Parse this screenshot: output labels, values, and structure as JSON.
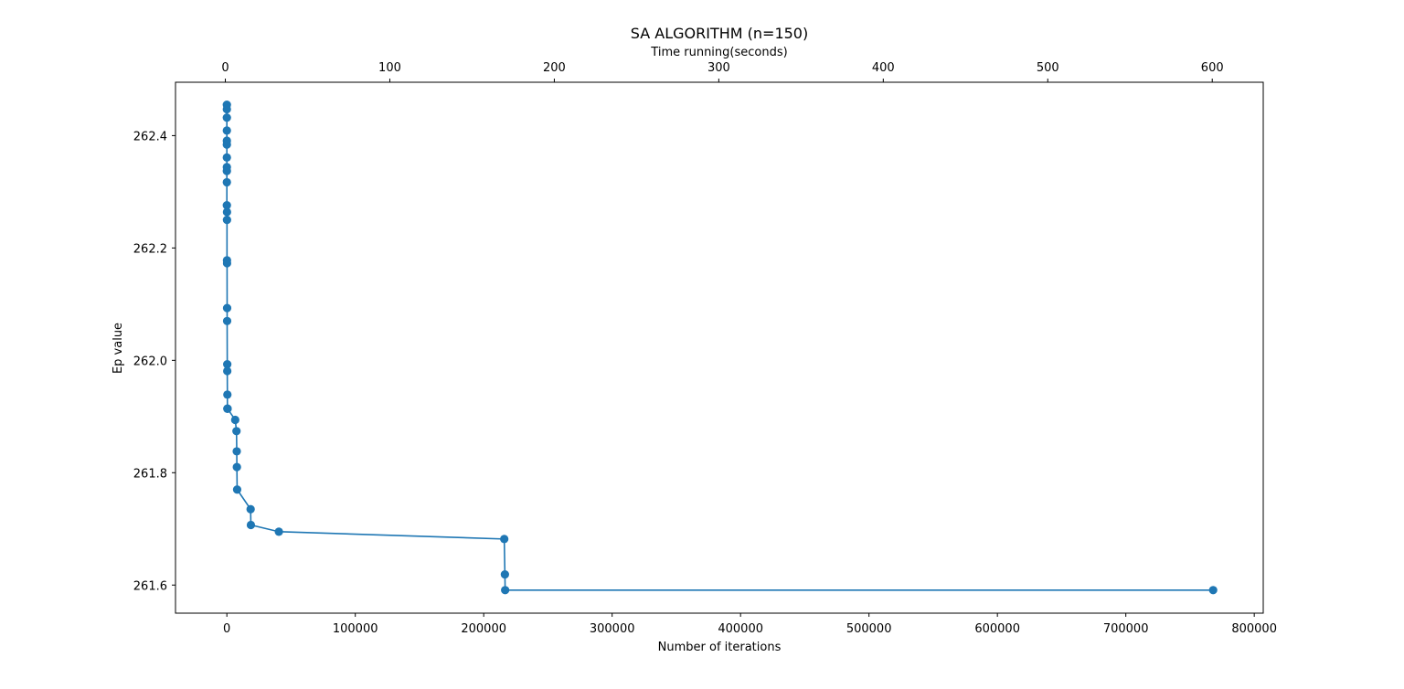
{
  "chart_data": {
    "type": "line",
    "title": "SA ALGORITHM (n=150)",
    "xlabel": "Number of iterations",
    "ylabel": "Ep value",
    "x2label": "Time running(seconds)",
    "xlim": [
      -40000,
      807000
    ],
    "ylim": [
      261.55,
      262.495
    ],
    "x2lim": [
      -30.3,
      631.0
    ],
    "x_ticks": [
      0,
      100000,
      200000,
      300000,
      400000,
      500000,
      600000,
      700000,
      800000
    ],
    "y_ticks": [
      261.6,
      261.8,
      262.0,
      262.2,
      262.4
    ],
    "x2_ticks": [
      0,
      100,
      200,
      300,
      400,
      500,
      600
    ],
    "grid": false,
    "series_color": "#1f77b4",
    "series": [
      {
        "x": [
          0,
          0,
          0,
          0,
          0,
          0,
          0,
          0,
          0,
          0,
          0,
          100,
          100,
          100,
          150,
          200,
          200,
          300,
          300,
          400,
          400,
          500,
          500,
          500,
          6500,
          7500,
          7700,
          7800,
          8000,
          18500,
          18700,
          40500,
          216000,
          216500,
          216700,
          768000
        ],
        "y": [
          262.455,
          262.447,
          262.432,
          262.409,
          262.391,
          262.384,
          262.361,
          262.344,
          262.337,
          262.317,
          262.276,
          262.264,
          262.25,
          262.178,
          262.173,
          262.093,
          262.07,
          261.993,
          261.981,
          261.939,
          261.914,
          261.914,
          261.914,
          261.914,
          261.894,
          261.874,
          261.838,
          261.81,
          261.77,
          261.735,
          261.707,
          261.695,
          261.682,
          261.619,
          261.591,
          261.591
        ]
      }
    ]
  }
}
